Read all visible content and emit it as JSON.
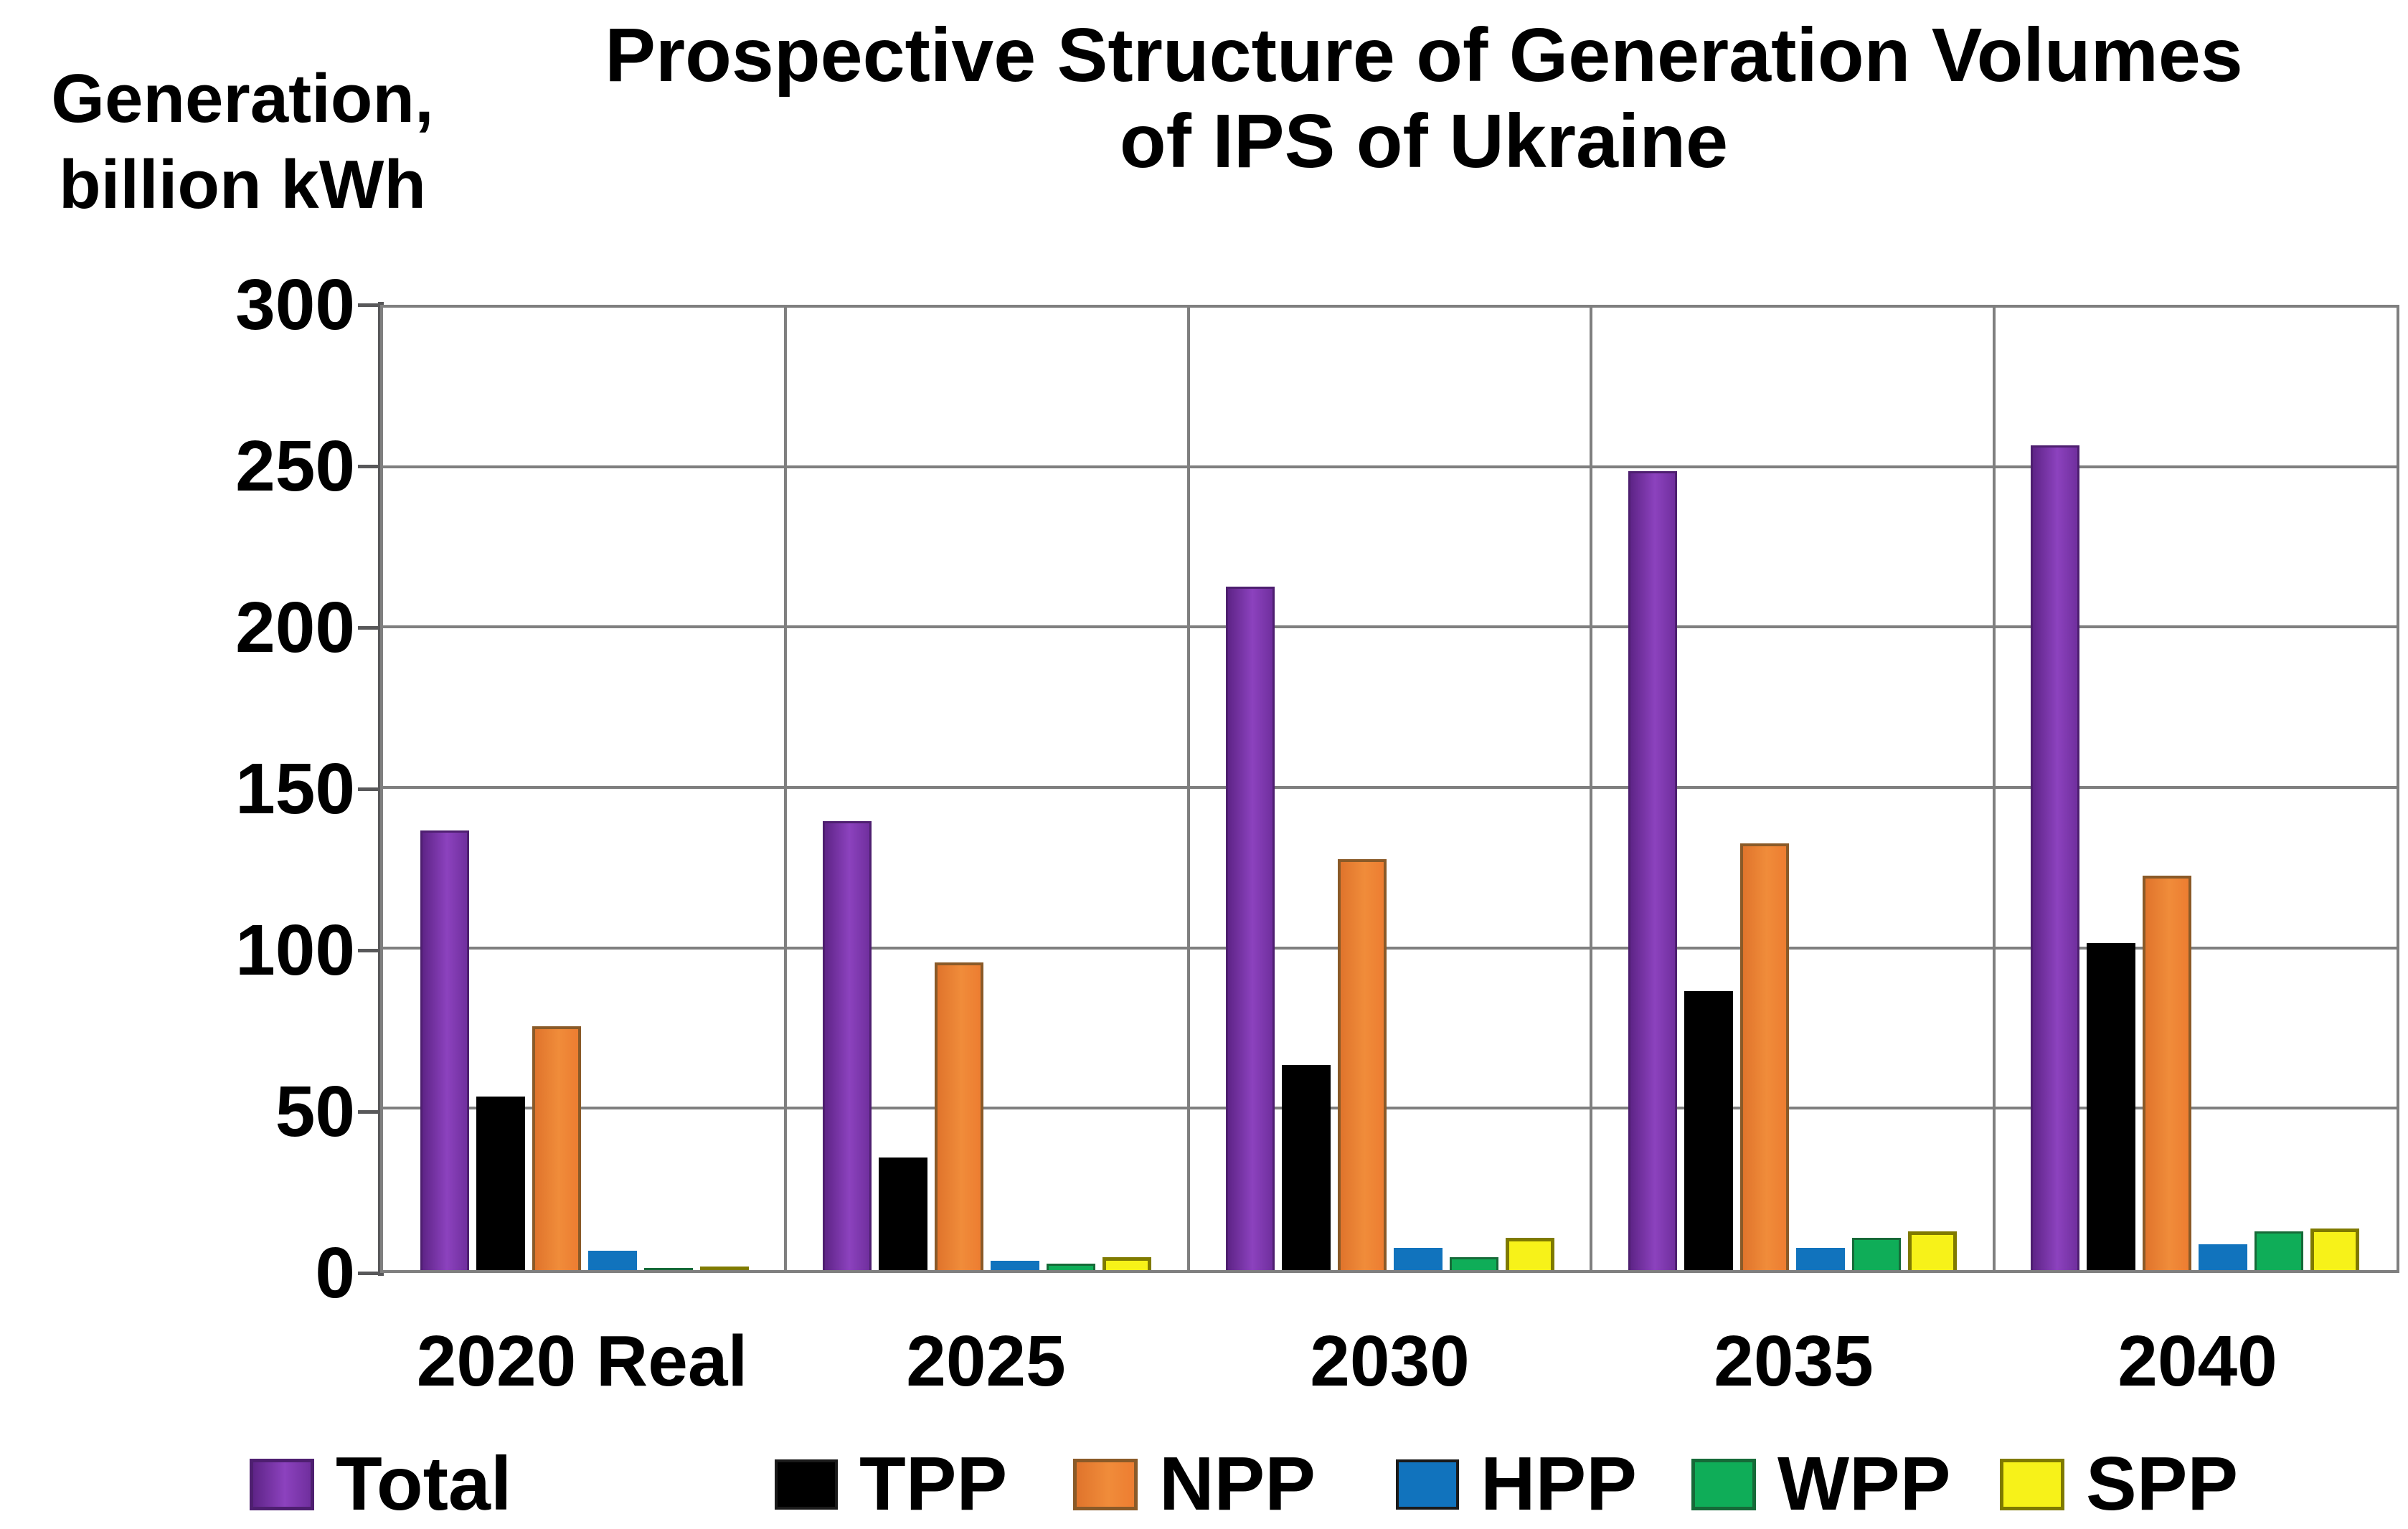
{
  "title": {
    "line1": "Prospective Structure of Generation Volumes",
    "line2": "of IPS of Ukraine"
  },
  "y_axis": {
    "unit_line1": "Generation,",
    "unit_line2": "billion kWh"
  },
  "chart_data": {
    "type": "bar",
    "title": "Prospective Structure of Generation Volumes of IPS of Ukraine",
    "ylabel": "Generation, billion kWh",
    "xlabel": "",
    "ylim": [
      0,
      300
    ],
    "yticks": [
      0,
      50,
      100,
      150,
      200,
      250,
      300
    ],
    "grid": true,
    "legend_position": "bottom",
    "categories": [
      "2020 Real",
      "2025",
      "2030",
      "2035",
      "2040"
    ],
    "series": [
      {
        "name": "Total",
        "color": "#7030A0",
        "values": [
          137,
          140,
          213,
          249,
          257
        ]
      },
      {
        "name": "TPP",
        "color": "#000000",
        "values": [
          54,
          35,
          64,
          87,
          102
        ]
      },
      {
        "name": "NPP",
        "color": "#ED7D31",
        "values": [
          76,
          96,
          128,
          133,
          123
        ]
      },
      {
        "name": "HPP",
        "color": "#1173BD",
        "values": [
          6,
          3,
          7,
          7,
          8
        ]
      },
      {
        "name": "WPP",
        "color": "#0FAD58",
        "values": [
          0.5,
          2,
          4,
          10,
          12
        ]
      },
      {
        "name": "SPP",
        "color": "#F7F219",
        "values": [
          0.5,
          4,
          10,
          12,
          13
        ]
      }
    ]
  }
}
